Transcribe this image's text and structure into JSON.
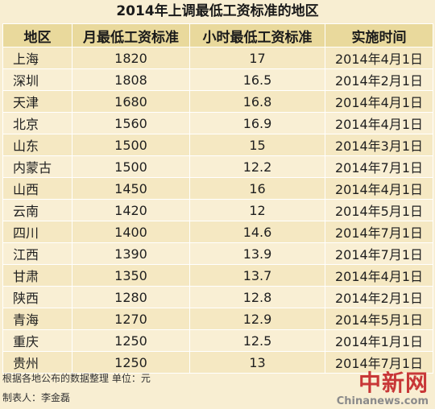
{
  "chart_data": {
    "type": "table",
    "title": "2014年上调最低工资标准的地区",
    "columns": [
      "地区",
      "月最低工资标准",
      "小时最低工资标准",
      "实施时间"
    ],
    "rows": [
      {
        "region": "上海",
        "monthly": "1820",
        "hourly": "17",
        "date": "2014年4月1日"
      },
      {
        "region": "深圳",
        "monthly": "1808",
        "hourly": "16.5",
        "date": "2014年2月1日"
      },
      {
        "region": "天津",
        "monthly": "1680",
        "hourly": "16.8",
        "date": "2014年4月1日"
      },
      {
        "region": "北京",
        "monthly": "1560",
        "hourly": "16.9",
        "date": "2014年4月1日"
      },
      {
        "region": "山东",
        "monthly": "1500",
        "hourly": "15",
        "date": "2014年3月1日"
      },
      {
        "region": "内蒙古",
        "monthly": "1500",
        "hourly": "12.2",
        "date": "2014年7月1日"
      },
      {
        "region": "山西",
        "monthly": "1450",
        "hourly": "16",
        "date": "2014年4月1日"
      },
      {
        "region": "云南",
        "monthly": "1420",
        "hourly": "12",
        "date": "2014年5月1日"
      },
      {
        "region": "四川",
        "monthly": "1400",
        "hourly": "14.6",
        "date": "2014年7月1日"
      },
      {
        "region": "江西",
        "monthly": "1390",
        "hourly": "13.9",
        "date": "2014年7月1日"
      },
      {
        "region": "甘肃",
        "monthly": "1350",
        "hourly": "13.7",
        "date": "2014年4月1日"
      },
      {
        "region": "陕西",
        "monthly": "1280",
        "hourly": "12.8",
        "date": "2014年2月1日"
      },
      {
        "region": "青海",
        "monthly": "1270",
        "hourly": "12.9",
        "date": "2014年5月1日"
      },
      {
        "region": "重庆",
        "monthly": "1250",
        "hourly": "12.5",
        "date": "2014年1月1日"
      },
      {
        "region": "贵州",
        "monthly": "1250",
        "hourly": "13",
        "date": "2014年7月1日"
      }
    ]
  },
  "footer": {
    "note": "根据各地公布的数据整理 单位：元",
    "maker": "制表人：李金磊"
  },
  "watermark": {
    "logo_text": "中新网",
    "url": "Chinanews.com"
  },
  "colors": {
    "background": "#f8eed2",
    "header_fill": "#e9d99c",
    "row_odd": "#f5e8c2",
    "row_even": "#f9efd4",
    "logo_red": "#c0181c"
  }
}
